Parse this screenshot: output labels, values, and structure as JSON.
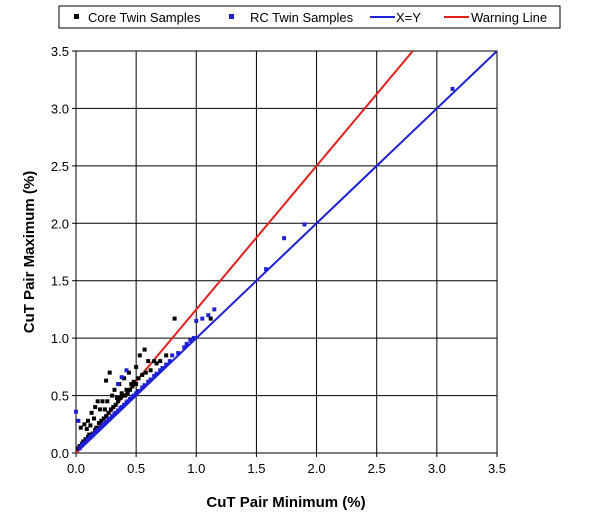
{
  "chart_data": {
    "type": "scatter",
    "title": "",
    "xlabel": "CuT Pair Minimum (%)",
    "ylabel": "CuT Pair Maximum (%)",
    "xlim": [
      0,
      3.5
    ],
    "ylim": [
      0,
      3.5
    ],
    "xticks": [
      "0.0",
      "0.5",
      "1.0",
      "1.5",
      "2.0",
      "2.5",
      "3.0",
      "3.5"
    ],
    "yticks": [
      "0.0",
      "0.5",
      "1.0",
      "1.5",
      "2.0",
      "2.5",
      "3.0",
      "3.5"
    ],
    "grid": true,
    "legend_position": "top",
    "series": [
      {
        "name": "Core Twin Samples",
        "kind": "points",
        "marker": "square",
        "color": "#000000",
        "points": [
          [
            0.02,
            0.04
          ],
          [
            0.03,
            0.06
          ],
          [
            0.04,
            0.22
          ],
          [
            0.05,
            0.08
          ],
          [
            0.06,
            0.1
          ],
          [
            0.07,
            0.25
          ],
          [
            0.08,
            0.12
          ],
          [
            0.09,
            0.21
          ],
          [
            0.1,
            0.14
          ],
          [
            0.1,
            0.28
          ],
          [
            0.11,
            0.16
          ],
          [
            0.12,
            0.24
          ],
          [
            0.13,
            0.35
          ],
          [
            0.14,
            0.17
          ],
          [
            0.15,
            0.3
          ],
          [
            0.16,
            0.2
          ],
          [
            0.16,
            0.4
          ],
          [
            0.17,
            0.22
          ],
          [
            0.18,
            0.45
          ],
          [
            0.19,
            0.26
          ],
          [
            0.2,
            0.38
          ],
          [
            0.21,
            0.28
          ],
          [
            0.22,
            0.45
          ],
          [
            0.23,
            0.3
          ],
          [
            0.24,
            0.38
          ],
          [
            0.25,
            0.32
          ],
          [
            0.25,
            0.63
          ],
          [
            0.26,
            0.45
          ],
          [
            0.27,
            0.35
          ],
          [
            0.28,
            0.7
          ],
          [
            0.29,
            0.38
          ],
          [
            0.3,
            0.5
          ],
          [
            0.31,
            0.4
          ],
          [
            0.32,
            0.55
          ],
          [
            0.33,
            0.42
          ],
          [
            0.34,
            0.48
          ],
          [
            0.35,
            0.45
          ],
          [
            0.36,
            0.6
          ],
          [
            0.37,
            0.48
          ],
          [
            0.38,
            0.52
          ],
          [
            0.39,
            0.5
          ],
          [
            0.4,
            0.65
          ],
          [
            0.41,
            0.5
          ],
          [
            0.42,
            0.55
          ],
          [
            0.43,
            0.52
          ],
          [
            0.44,
            0.7
          ],
          [
            0.45,
            0.55
          ],
          [
            0.46,
            0.6
          ],
          [
            0.47,
            0.58
          ],
          [
            0.48,
            0.62
          ],
          [
            0.5,
            0.6
          ],
          [
            0.5,
            0.75
          ],
          [
            0.52,
            0.65
          ],
          [
            0.53,
            0.85
          ],
          [
            0.55,
            0.68
          ],
          [
            0.57,
            0.9
          ],
          [
            0.58,
            0.7
          ],
          [
            0.6,
            0.8
          ],
          [
            0.62,
            0.72
          ],
          [
            0.65,
            0.8
          ],
          [
            0.67,
            0.78
          ],
          [
            0.7,
            0.8
          ],
          [
            0.75,
            0.85
          ],
          [
            0.82,
            1.17
          ],
          [
            1.12,
            1.17
          ]
        ]
      },
      {
        "name": "RC Twin Samples",
        "kind": "points",
        "marker": "square",
        "color": "#1f1fd6",
        "points": [
          [
            0.0,
            0.36
          ],
          [
            0.02,
            0.28
          ],
          [
            0.03,
            0.04
          ],
          [
            0.05,
            0.07
          ],
          [
            0.07,
            0.09
          ],
          [
            0.09,
            0.11
          ],
          [
            0.1,
            0.12
          ],
          [
            0.12,
            0.14
          ],
          [
            0.13,
            0.15
          ],
          [
            0.15,
            0.17
          ],
          [
            0.17,
            0.19
          ],
          [
            0.18,
            0.2
          ],
          [
            0.2,
            0.22
          ],
          [
            0.22,
            0.24
          ],
          [
            0.23,
            0.25
          ],
          [
            0.25,
            0.27
          ],
          [
            0.27,
            0.29
          ],
          [
            0.28,
            0.3
          ],
          [
            0.3,
            0.32
          ],
          [
            0.32,
            0.34
          ],
          [
            0.33,
            0.35
          ],
          [
            0.35,
            0.37
          ],
          [
            0.37,
            0.39
          ],
          [
            0.38,
            0.4
          ],
          [
            0.4,
            0.42
          ],
          [
            0.42,
            0.44
          ],
          [
            0.43,
            0.45
          ],
          [
            0.45,
            0.47
          ],
          [
            0.47,
            0.49
          ],
          [
            0.48,
            0.5
          ],
          [
            0.5,
            0.52
          ],
          [
            0.52,
            0.54
          ],
          [
            0.55,
            0.57
          ],
          [
            0.57,
            0.59
          ],
          [
            0.6,
            0.62
          ],
          [
            0.62,
            0.64
          ],
          [
            0.65,
            0.67
          ],
          [
            0.67,
            0.69
          ],
          [
            0.7,
            0.72
          ],
          [
            0.72,
            0.74
          ],
          [
            0.75,
            0.77
          ],
          [
            0.78,
            0.8
          ],
          [
            0.8,
            0.85
          ],
          [
            0.85,
            0.87
          ],
          [
            0.9,
            0.92
          ],
          [
            0.92,
            0.95
          ],
          [
            0.95,
            0.98
          ],
          [
            0.98,
            1.0
          ],
          [
            1.0,
            1.15
          ],
          [
            1.05,
            1.17
          ],
          [
            1.1,
            1.2
          ],
          [
            1.15,
            1.25
          ],
          [
            1.58,
            1.6
          ],
          [
            1.73,
            1.87
          ],
          [
            1.9,
            1.99
          ],
          [
            3.13,
            3.17
          ],
          [
            0.42,
            0.72
          ],
          [
            0.35,
            0.6
          ],
          [
            0.38,
            0.66
          ]
        ]
      },
      {
        "name": "X=Y",
        "kind": "line",
        "color": "#1f1fd6",
        "points": [
          [
            0,
            0
          ],
          [
            3.5,
            3.5
          ]
        ]
      },
      {
        "name": "Warning Line",
        "kind": "line",
        "color": "#e0201c",
        "points": [
          [
            0,
            0
          ],
          [
            2.8,
            3.5
          ]
        ]
      }
    ]
  }
}
